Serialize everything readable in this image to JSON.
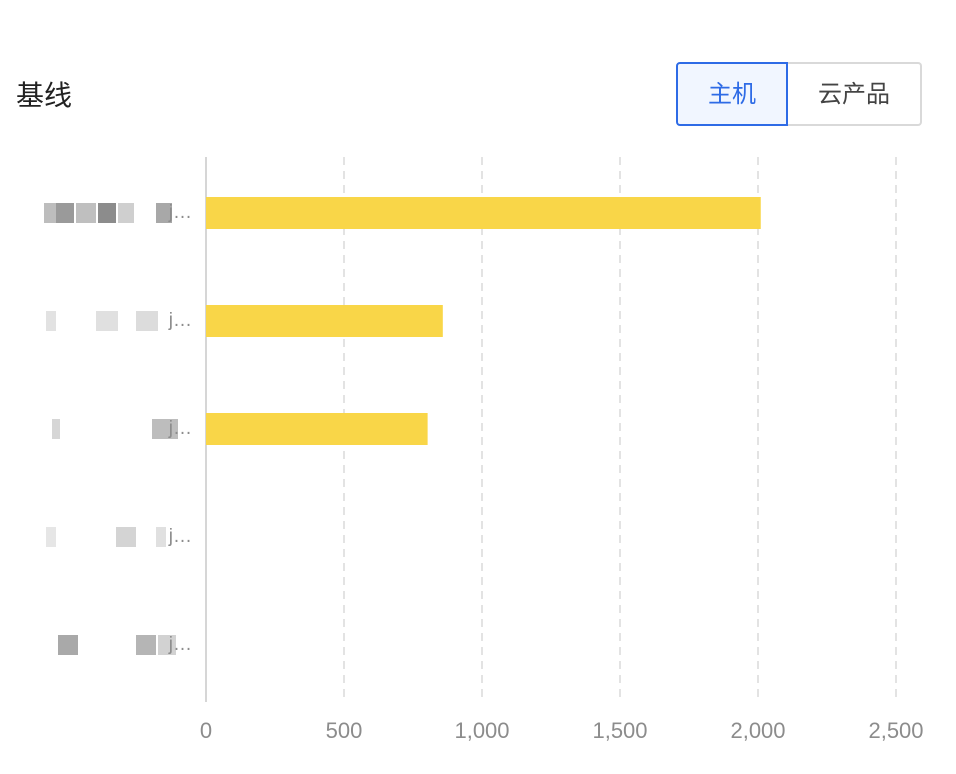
{
  "header": {
    "title": "基线"
  },
  "toggle": {
    "host_label": "主机",
    "cloud_label": "云产品",
    "selected": "主机"
  },
  "colors": {
    "bar": "#f9d648",
    "accent": "#2e6be6",
    "grid": "#e3e3e3",
    "axis_text": "#8c8c8c"
  },
  "chart_data": {
    "type": "bar",
    "orientation": "horizontal",
    "categories": [
      "j…",
      "j…",
      "j…",
      "j…",
      "j…"
    ],
    "values": [
      2010,
      858,
      803,
      0,
      0
    ],
    "xlim": [
      0,
      2500
    ],
    "x_ticks": [
      0,
      500,
      1000,
      1500,
      2000,
      2500
    ],
    "x_tick_labels": [
      "0",
      "500",
      "1,000",
      "1,500",
      "2,000",
      "2,500"
    ],
    "grid": "vertical-dashed",
    "legend": "none",
    "title": "",
    "xlabel": "",
    "ylabel": ""
  }
}
